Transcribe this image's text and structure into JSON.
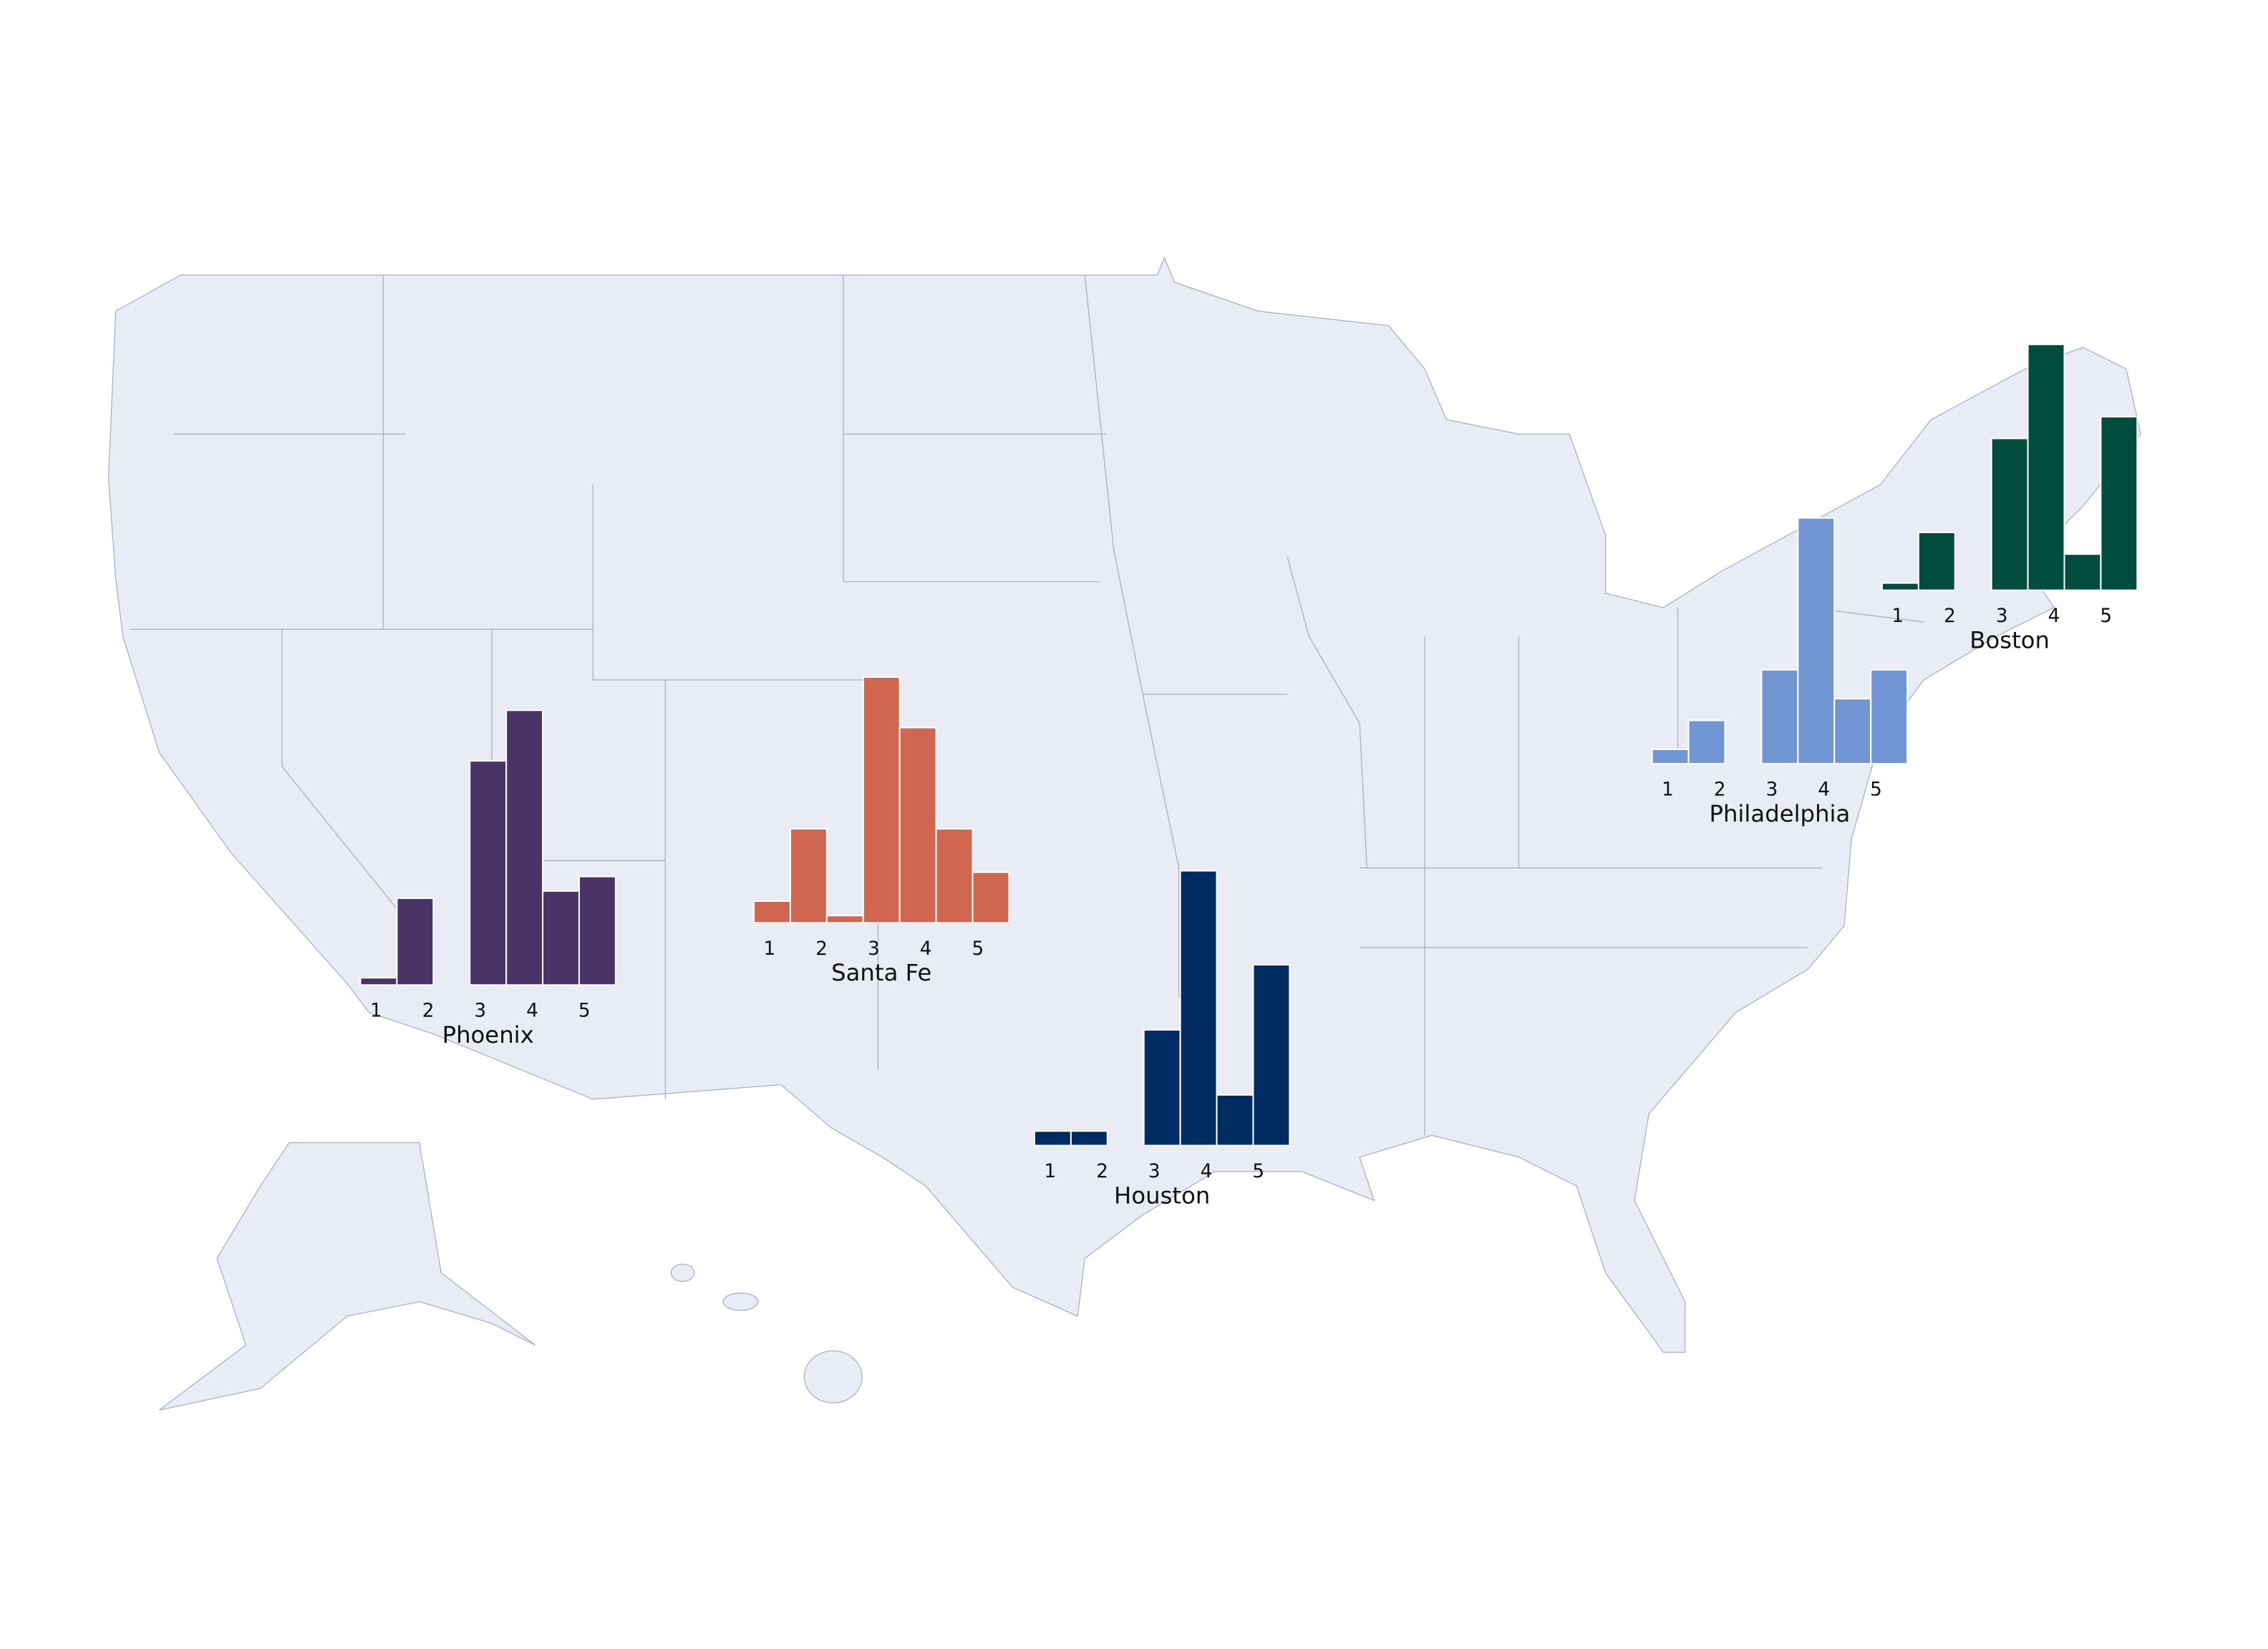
{
  "chart_data": [
    {
      "type": "histogram",
      "title": "Phoenix",
      "color": "#4a3366",
      "bins": [
        0.7,
        1.4,
        2.1,
        2.8,
        3.5,
        4.2,
        4.9,
        5.6
      ],
      "values": [
        1,
        12,
        0,
        31,
        38,
        13,
        15
      ],
      "xticks": [
        1,
        2,
        3,
        4,
        5
      ]
    },
    {
      "type": "histogram",
      "title": "Santa Fe",
      "color": "#d16650",
      "bins": [
        0.7,
        1.4,
        2.1,
        2.8,
        3.5,
        4.2,
        4.9,
        5.6
      ],
      "values": [
        3,
        13,
        1,
        34,
        27,
        13,
        7
      ],
      "xticks": [
        1,
        2,
        3,
        4,
        5
      ]
    },
    {
      "type": "histogram",
      "title": "Houston",
      "color": "#002c63",
      "bins": [
        0.7,
        1.4,
        2.1,
        2.8,
        3.5,
        4.2,
        4.9,
        5.6
      ],
      "values": [
        2,
        2,
        0,
        16,
        38,
        7,
        25
      ],
      "xticks": [
        1,
        2,
        3,
        4,
        5
      ]
    },
    {
      "type": "histogram",
      "title": "Philadelphia",
      "color": "#7296d4",
      "bins": [
        0.7,
        1.4,
        2.1,
        2.8,
        3.5,
        4.2,
        4.9,
        5.6
      ],
      "values": [
        2,
        6,
        0,
        13,
        34,
        9,
        13
      ],
      "xticks": [
        1,
        2,
        3,
        4,
        5
      ]
    },
    {
      "type": "histogram",
      "title": "Boston",
      "color": "#004d40",
      "bins": [
        0.7,
        1.4,
        2.1,
        2.8,
        3.5,
        4.2,
        4.9,
        5.6
      ],
      "values": [
        1,
        8,
        0,
        21,
        34,
        5,
        24
      ],
      "xticks": [
        1,
        2,
        3,
        4,
        5
      ]
    }
  ]
}
